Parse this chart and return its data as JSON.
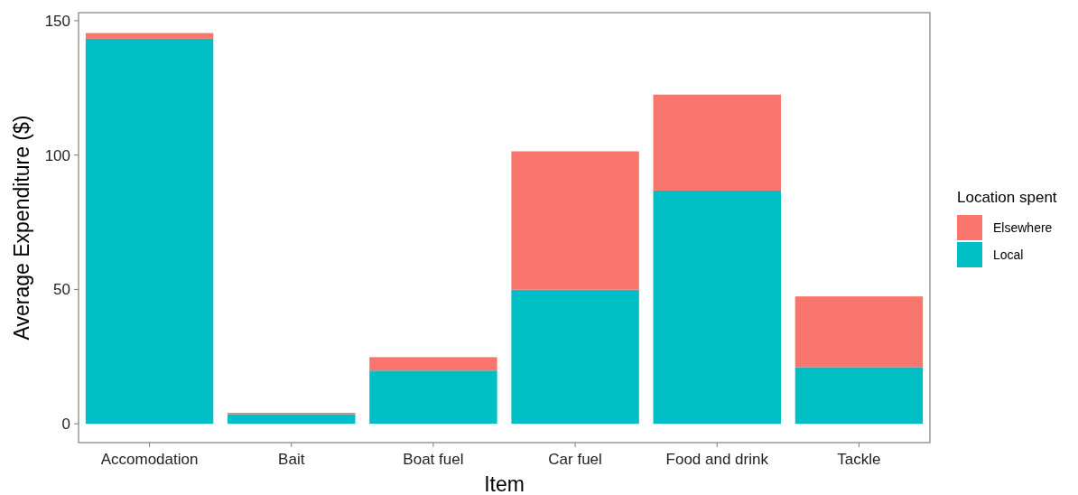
{
  "chart_data": {
    "type": "bar",
    "xlabel": "Item",
    "ylabel": "Average Expenditure ($)",
    "legend_title": "Location spent",
    "legend": "right",
    "stacked": true,
    "grid": false,
    "categories": [
      "Accomodation",
      "Bait",
      "Boat fuel",
      "Car fuel",
      "Food and drink",
      "Tackle"
    ],
    "series": [
      {
        "name": "Local",
        "color": "#00bfc4",
        "values": [
          143.3,
          3.6,
          19.8,
          49.9,
          86.8,
          21.1
        ]
      },
      {
        "name": "Elsewhere",
        "color": "#f8766d",
        "values": [
          2.1,
          0.5,
          5,
          51.5,
          35.7,
          26.3
        ]
      }
    ],
    "ylim": [
      -7,
      153
    ],
    "yticks": [
      0,
      50,
      100,
      150
    ]
  }
}
